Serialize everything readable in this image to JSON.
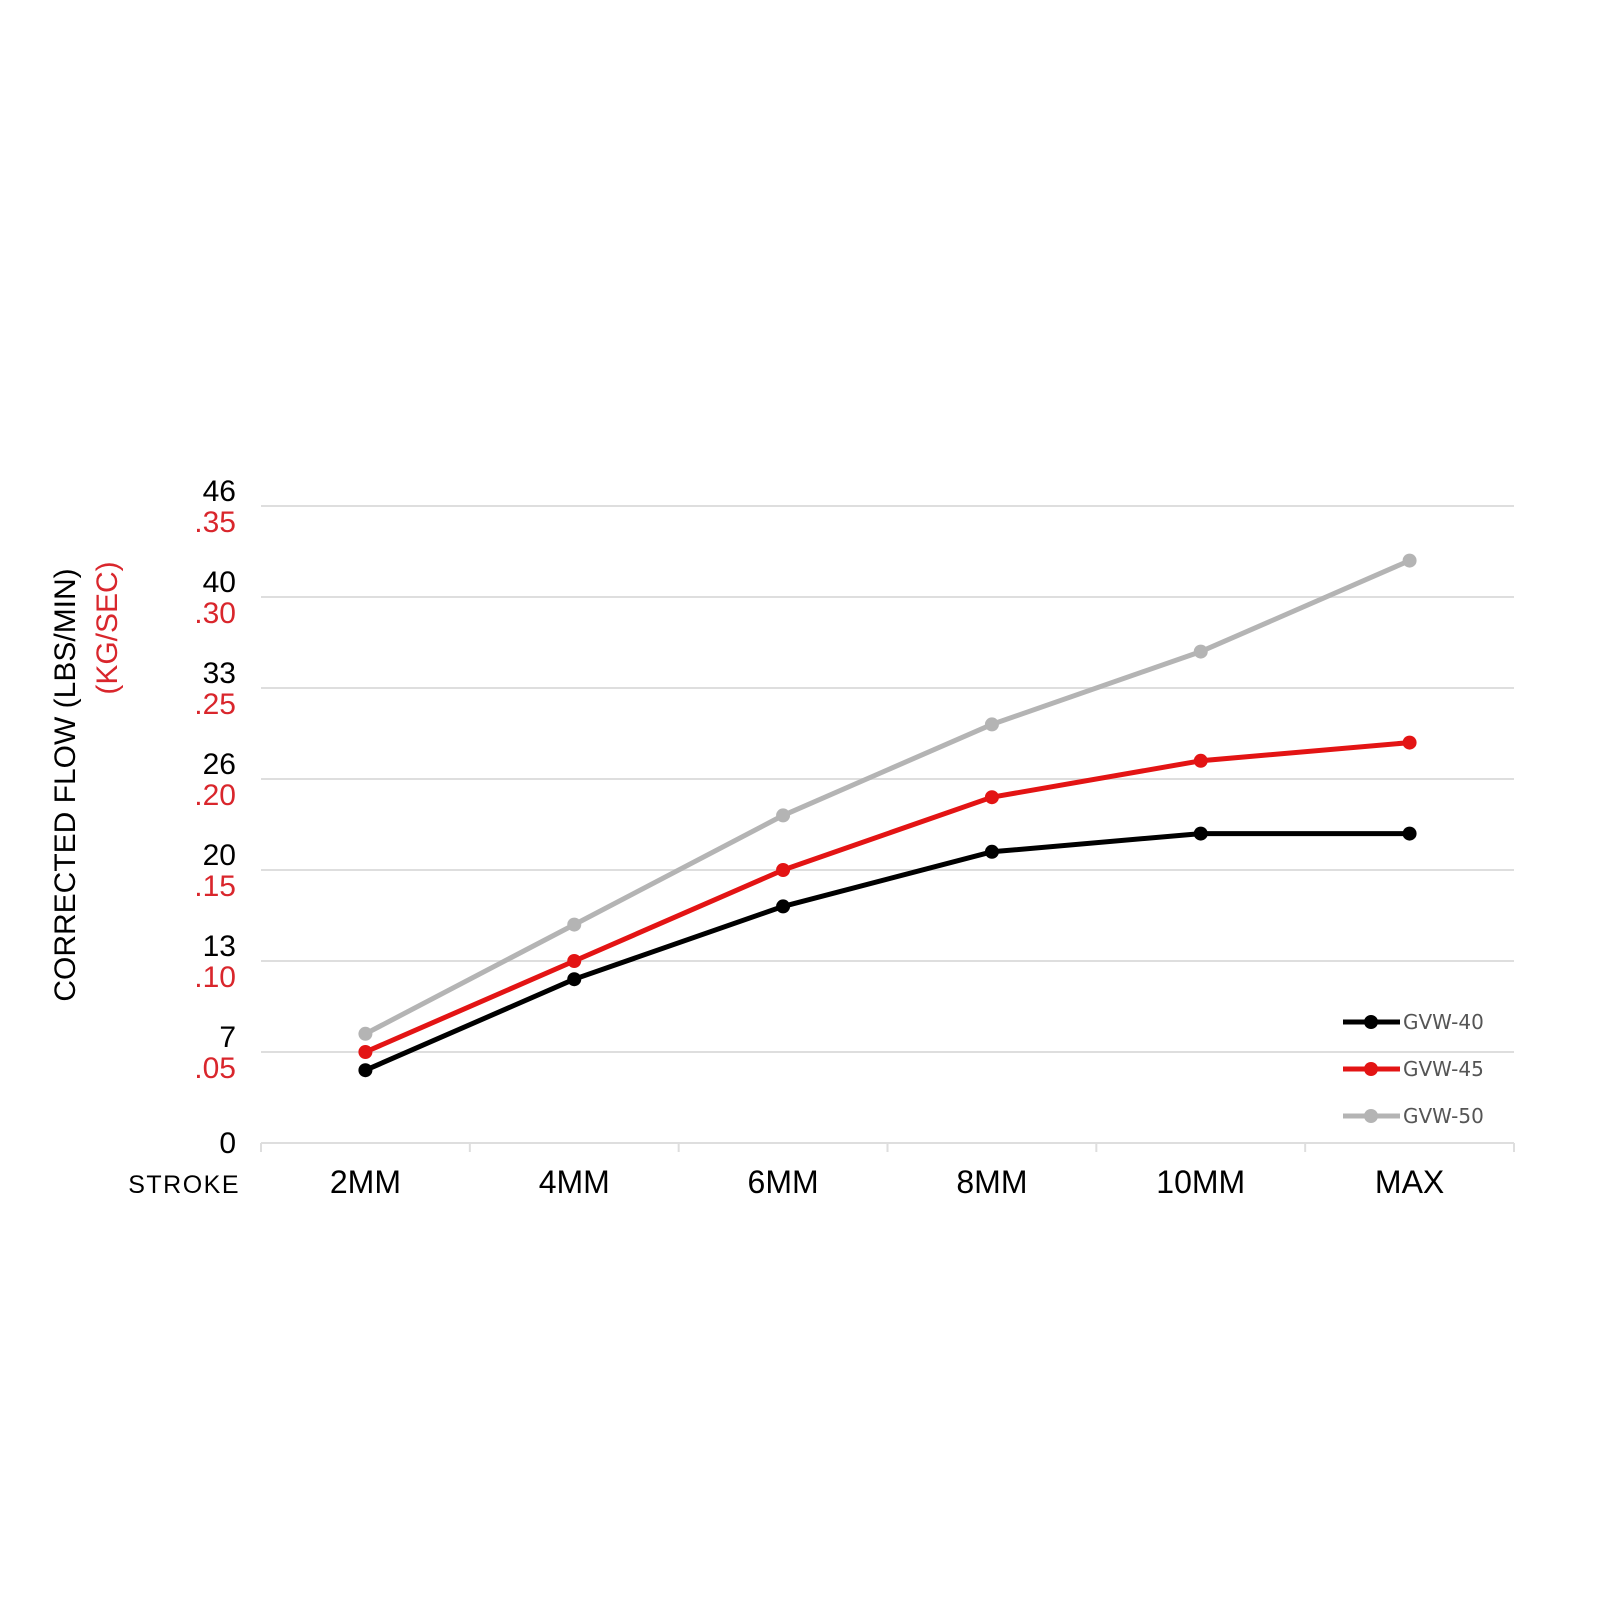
{
  "chart_data": {
    "type": "line",
    "xlabel": "STROKE",
    "ylabel": "CORRECTED FLOW (LBS/MIN)",
    "ylabel_secondary": "(KG/SEC)",
    "categories": [
      "2MM",
      "4MM",
      "6MM",
      "8MM",
      "10MM",
      "MAX"
    ],
    "y_ticks_primary": [
      "0",
      "7",
      "13",
      "20",
      "26",
      "33",
      "40",
      "46"
    ],
    "y_ticks_secondary": [
      ".05",
      ".10",
      ".15",
      ".20",
      ".25",
      ".30",
      ".35"
    ],
    "ylim": [
      0,
      0.35
    ],
    "y_unit_of_values": "KG/SEC",
    "grid": true,
    "legend_position": "bottom-right",
    "series": [
      {
        "name": "GVW-40",
        "color": "#000000",
        "values": [
          0.04,
          0.09,
          0.13,
          0.16,
          0.17,
          0.17
        ]
      },
      {
        "name": "GVW-45",
        "color": "#e31414",
        "values": [
          0.05,
          0.1,
          0.15,
          0.19,
          0.21,
          0.22
        ]
      },
      {
        "name": "GVW-50",
        "color": "#b4b4b4",
        "values": [
          0.06,
          0.12,
          0.18,
          0.23,
          0.27,
          0.32
        ]
      }
    ],
    "secondary_color": "#d9262c"
  }
}
